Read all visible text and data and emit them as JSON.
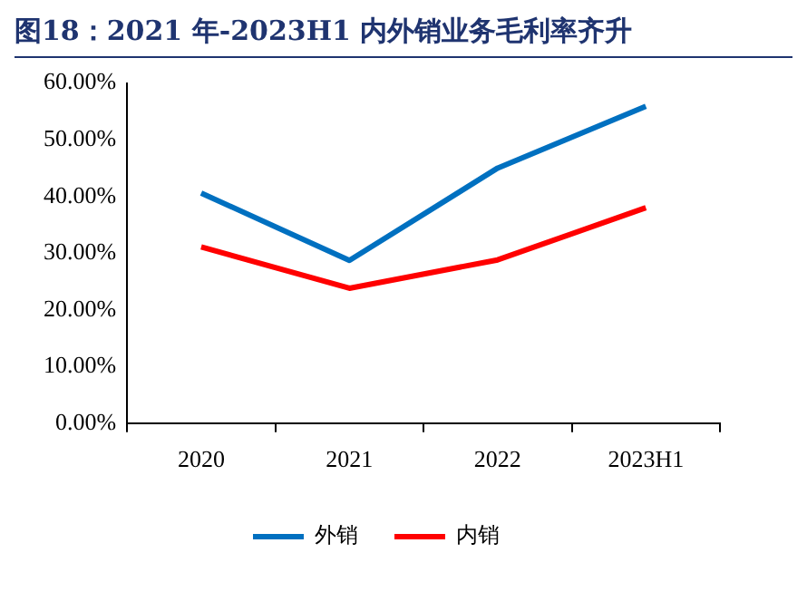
{
  "chart_data": {
    "type": "line",
    "title": "图18：2021 年-2023H1 内外销业务毛利率齐升",
    "categories": [
      "2020",
      "2021",
      "2022",
      "2023H1"
    ],
    "series": [
      {
        "name": "外销",
        "color": "#0070c0",
        "values": [
          40.6,
          28.7,
          45.0,
          55.9
        ]
      },
      {
        "name": "内销",
        "color": "#ff0000",
        "values": [
          31.1,
          23.8,
          28.8,
          38.0
        ]
      }
    ],
    "ylim": [
      0,
      60
    ],
    "yticks": [
      {
        "value": 0,
        "label": "0.00%"
      },
      {
        "value": 10,
        "label": "10.00%"
      },
      {
        "value": 20,
        "label": "20.00%"
      },
      {
        "value": 30,
        "label": "30.00%"
      },
      {
        "value": 40,
        "label": "40.00%"
      },
      {
        "value": 50,
        "label": "50.00%"
      },
      {
        "value": 60,
        "label": "60.00%"
      }
    ],
    "grid": false,
    "legend": "bottom",
    "marker": "none",
    "line_style": "solid"
  }
}
